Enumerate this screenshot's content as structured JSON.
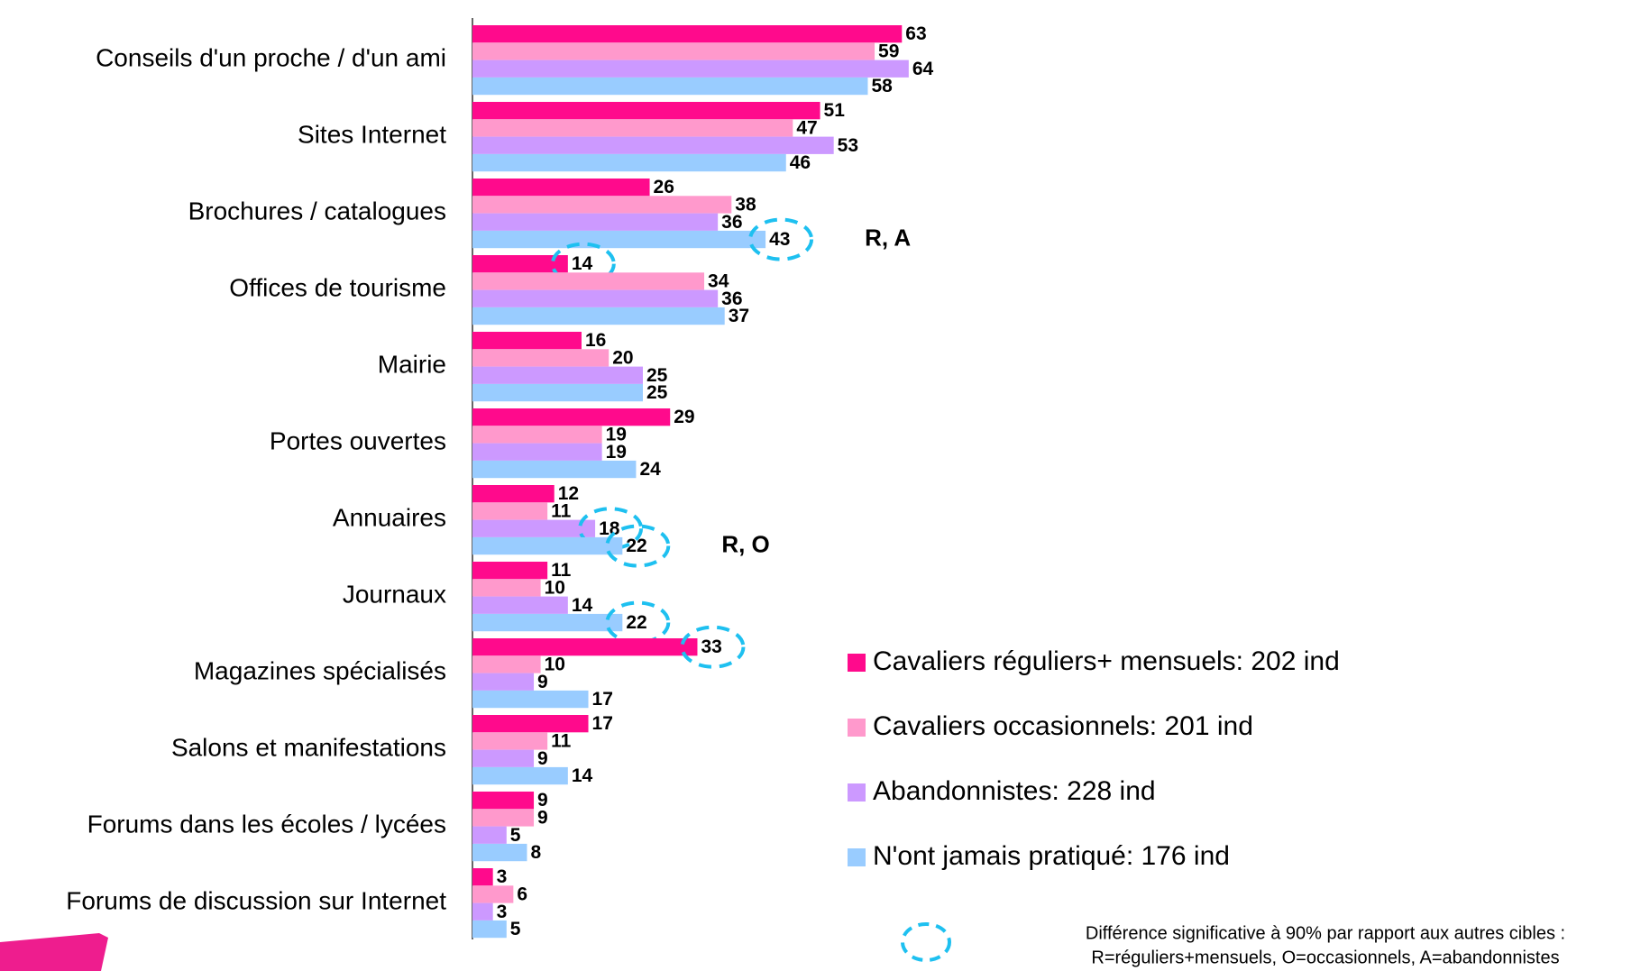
{
  "chart_data": {
    "type": "barh",
    "categories": [
      "Conseils d'un proche / d'un ami",
      "Sites Internet",
      "Brochures / catalogues",
      "Offices de tourisme",
      "Mairie",
      "Portes ouvertes",
      "Annuaires",
      "Journaux",
      "Magazines spécialisés",
      "Salons et manifestations",
      "Forums dans les écoles / lycées",
      "Forums de discussion sur Internet"
    ],
    "series": [
      {
        "name": "Cavaliers réguliers+ mensuels: 202 ind",
        "color": "#ff0a8c",
        "values": [
          63,
          51,
          26,
          14,
          16,
          29,
          12,
          11,
          33,
          17,
          9,
          3
        ],
        "significant": [
          false,
          false,
          false,
          true,
          false,
          false,
          false,
          false,
          true,
          false,
          false,
          false
        ]
      },
      {
        "name": "Cavaliers occasionnels: 201 ind",
        "color": "#ff99cc",
        "values": [
          59,
          47,
          38,
          34,
          20,
          19,
          11,
          10,
          10,
          11,
          9,
          6
        ],
        "significant": [
          false,
          false,
          false,
          false,
          false,
          false,
          false,
          false,
          false,
          false,
          false,
          false
        ]
      },
      {
        "name": "Abandonnistes: 228 ind",
        "color": "#cc99ff",
        "values": [
          64,
          53,
          36,
          36,
          25,
          19,
          18,
          14,
          9,
          9,
          5,
          3
        ],
        "significant": [
          false,
          false,
          false,
          false,
          false,
          false,
          true,
          false,
          false,
          false,
          false,
          false
        ]
      },
      {
        "name": "N'ont jamais pratiqué: 176 ind",
        "color": "#99ccff",
        "values": [
          58,
          46,
          43,
          37,
          25,
          24,
          22,
          22,
          17,
          14,
          8,
          5
        ],
        "significant": [
          false,
          false,
          true,
          false,
          false,
          false,
          true,
          true,
          false,
          false,
          false,
          false
        ]
      }
    ],
    "annotations": [
      {
        "text": "R, A",
        "category": 2
      },
      {
        "text": "R, O",
        "category": 6
      }
    ],
    "footnote": [
      "Différence significative à 90% par rapport aux autres cibles :",
      "R=réguliers+mensuels, O=occasionnels, A=abandonnistes"
    ]
  }
}
